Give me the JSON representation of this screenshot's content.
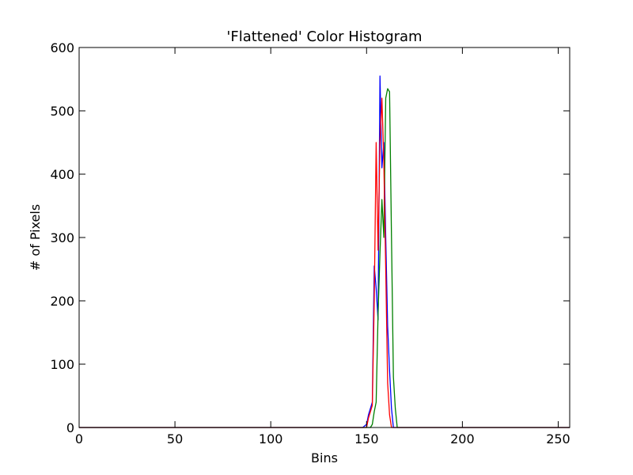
{
  "chart_data": {
    "type": "line",
    "title": "'Flattened' Color Histogram",
    "xlabel": "Bins",
    "ylabel": "# of Pixels",
    "xlim": [
      0,
      256
    ],
    "ylim": [
      0,
      600
    ],
    "xticks": [
      0,
      50,
      100,
      150,
      200,
      250
    ],
    "yticks": [
      0,
      100,
      200,
      300,
      400,
      500,
      600
    ],
    "grid": false,
    "series": [
      {
        "color": "#0000ff",
        "x": [
          0,
          148,
          150,
          151,
          152,
          153,
          154,
          155,
          156,
          157,
          158,
          159,
          160,
          161,
          162,
          163,
          164,
          165,
          166,
          256
        ],
        "values": [
          0,
          0,
          5,
          20,
          30,
          40,
          255,
          220,
          170,
          555,
          410,
          450,
          300,
          160,
          90,
          30,
          0,
          0,
          0,
          0
        ]
      },
      {
        "color": "#008000",
        "x": [
          0,
          151,
          152,
          153,
          154,
          155,
          156,
          157,
          158,
          159,
          160,
          161,
          162,
          163,
          164,
          165,
          166,
          256
        ],
        "values": [
          0,
          0,
          0,
          5,
          25,
          40,
          180,
          275,
          360,
          300,
          520,
          535,
          530,
          300,
          80,
          30,
          0,
          0
        ]
      },
      {
        "color": "#ff0000",
        "x": [
          0,
          149,
          150,
          151,
          152,
          153,
          154,
          155,
          156,
          157,
          158,
          159,
          160,
          161,
          162,
          163,
          164,
          165,
          256
        ],
        "values": [
          0,
          0,
          0,
          15,
          25,
          35,
          200,
          450,
          280,
          450,
          520,
          420,
          250,
          70,
          20,
          0,
          0,
          0,
          0
        ]
      }
    ]
  }
}
